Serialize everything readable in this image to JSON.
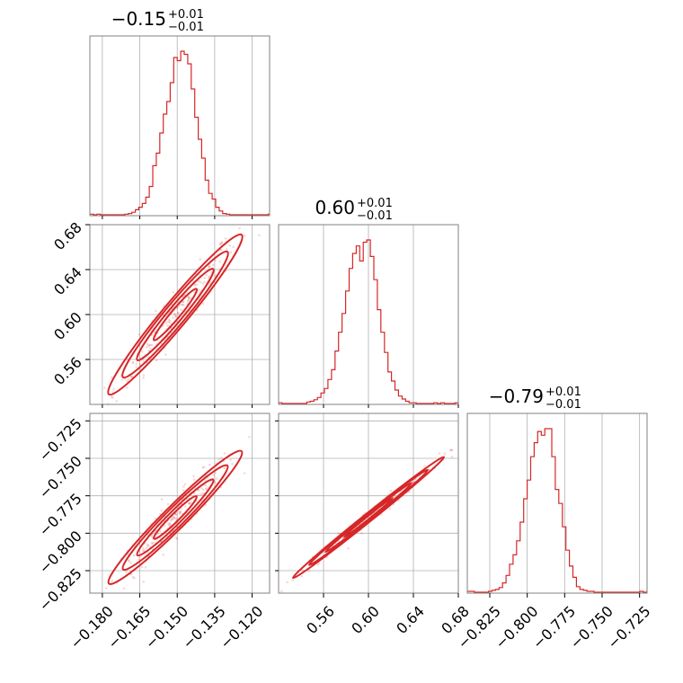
{
  "chart_data": {
    "type": "corner",
    "color": "#d62728",
    "parameters": [
      {
        "title": {
          "median": "−0.15",
          "plus": "+0.01",
          "minus": "−0.01"
        },
        "range": [
          -0.185,
          -0.113
        ],
        "ticks": [
          -0.18,
          -0.165,
          -0.15,
          -0.135,
          -0.12
        ],
        "tick_labels": [
          "−0.180",
          "−0.165",
          "−0.150",
          "−0.135",
          "−0.120"
        ],
        "hist": {
          "edges_start": -0.185,
          "bin_width": 0.0014,
          "counts": [
            1,
            0,
            1,
            0,
            0,
            0,
            0,
            0,
            0,
            0,
            1,
            2,
            4,
            8,
            12,
            18,
            28,
            45,
            78,
            98,
            130,
            160,
            180,
            210,
            250,
            245,
            260,
            255,
            240,
            200,
            155,
            120,
            90,
            55,
            34,
            25,
            12,
            6,
            2,
            1,
            0,
            0,
            0,
            0,
            0,
            0,
            0,
            0,
            0,
            0,
            0,
            1
          ]
        }
      },
      {
        "title": {
          "median": "0.60",
          "plus": "+0.01",
          "minus": "−0.01"
        },
        "range": [
          0.52,
          0.68
        ],
        "ticks": [
          0.56,
          0.6,
          0.64,
          0.68
        ],
        "tick_labels": [
          "0.56",
          "0.60",
          "0.64",
          "0.68"
        ],
        "y_ticks": [
          0.56,
          0.6,
          0.64,
          0.68
        ],
        "hist": {
          "edges_start": 0.52,
          "bin_width": 0.00314,
          "counts": [
            1,
            0,
            0,
            0,
            0,
            0,
            0,
            0,
            2,
            3,
            5,
            8,
            14,
            20,
            32,
            45,
            70,
            95,
            120,
            150,
            180,
            200,
            210,
            190,
            215,
            218,
            196,
            165,
            125,
            95,
            68,
            42,
            30,
            18,
            10,
            6,
            3,
            1,
            1,
            0,
            0,
            0,
            0,
            0,
            1,
            0,
            1,
            0,
            0,
            0,
            1
          ]
        }
      },
      {
        "title": {
          "median": "−0.79",
          "plus": "+0.01",
          "minus": "−0.01"
        },
        "range": [
          -0.84,
          -0.72
        ],
        "ticks": [
          -0.825,
          -0.8,
          -0.775,
          -0.75,
          -0.725
        ],
        "tick_labels": [
          "−0.825",
          "−0.800",
          "−0.775",
          "−0.750",
          "−0.725"
        ],
        "hist": {
          "edges_start": -0.84,
          "bin_width": 0.00235,
          "counts": [
            1,
            1,
            0,
            0,
            0,
            0,
            1,
            2,
            3,
            5,
            10,
            18,
            30,
            40,
            55,
            75,
            100,
            120,
            145,
            160,
            172,
            168,
            175,
            175,
            145,
            110,
            95,
            70,
            45,
            28,
            16,
            6,
            3,
            2,
            1,
            1,
            0,
            0,
            0,
            0,
            0,
            0,
            0,
            0,
            0,
            0,
            0,
            0,
            0,
            1,
            0,
            1
          ]
        }
      }
    ],
    "pairs": [
      {
        "row": 1,
        "col": 0,
        "center": [
          -0.1508,
          0.6
        ],
        "slope": 2.67,
        "spread": 0.0095,
        "width": 0.0012
      },
      {
        "row": 2,
        "col": 0,
        "center": [
          -0.1508,
          -0.7895
        ],
        "slope": 1.66,
        "spread": 0.0095,
        "width": 0.0011
      },
      {
        "row": 2,
        "col": 1,
        "center": [
          0.6,
          -0.7895
        ],
        "slope": 0.6,
        "spread": 0.024,
        "width": 0.0007
      }
    ]
  }
}
